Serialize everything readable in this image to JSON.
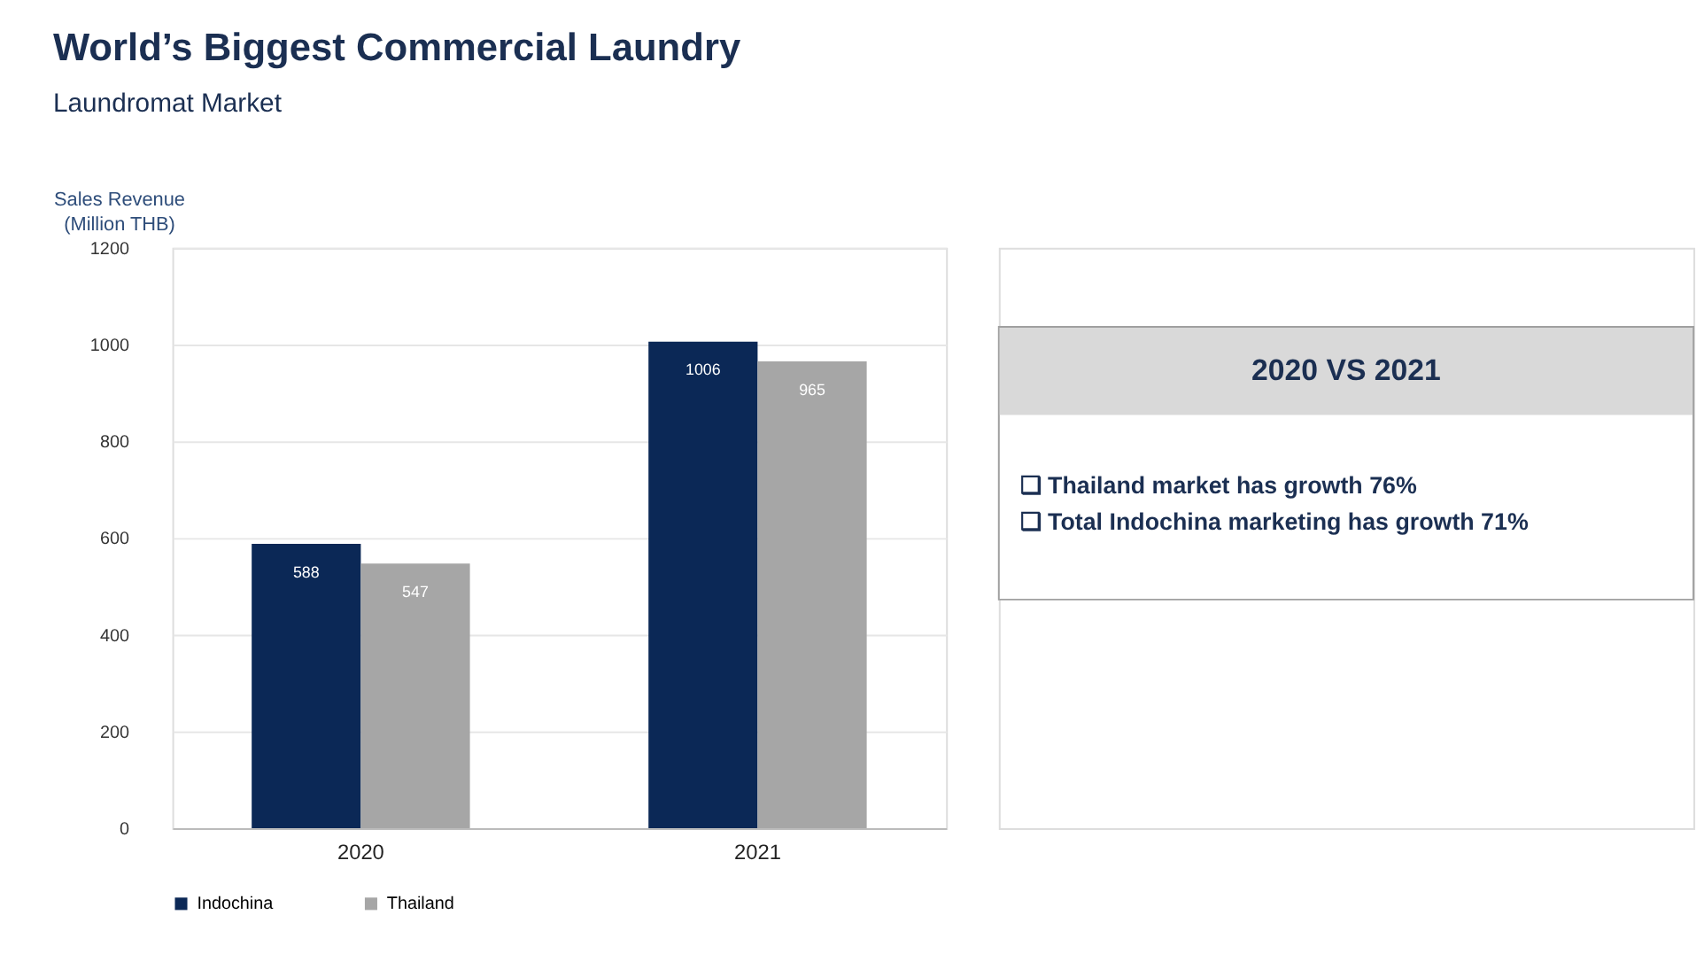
{
  "chart_data": [
    {
      "type": "bar",
      "title": "World’s Biggest Commercial Laundry",
      "subtitle": "Laundromat Market",
      "ylabel": "Sales Revenue (Million THB)",
      "categories": [
        "2020",
        "2021"
      ],
      "series": [
        {
          "name": "Indochina",
          "color": "#0b2856",
          "values": [
            588,
            1006
          ]
        },
        {
          "name": "Thailand",
          "color": "#a6a6a6",
          "values": [
            547,
            965
          ]
        }
      ],
      "ylim": [
        0,
        1200
      ],
      "yticks": [
        0,
        200,
        400,
        600,
        800,
        1000,
        1200
      ],
      "grid": "y",
      "legend": "bottom",
      "data_labels": true
    },
    {
      "type": "other",
      "title": "2020 VS 2021",
      "annotations": [
        "❑ Thailand market has growth 76%",
        "❑ Total Indochina marketing has growth 71%"
      ]
    }
  ]
}
